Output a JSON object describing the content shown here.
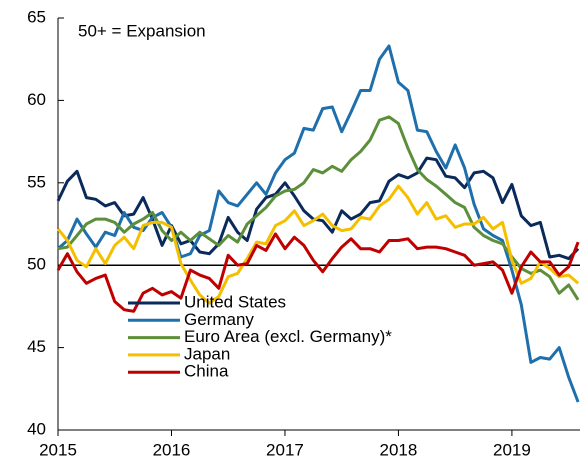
{
  "chart_data": {
    "type": "line",
    "annotation": "50+ = Expansion",
    "x": [
      2015,
      2015.083,
      2015.167,
      2015.25,
      2015.333,
      2015.417,
      2015.5,
      2015.583,
      2015.667,
      2015.75,
      2015.833,
      2015.917,
      2016,
      2016.083,
      2016.167,
      2016.25,
      2016.333,
      2016.417,
      2016.5,
      2016.583,
      2016.667,
      2016.75,
      2016.833,
      2016.917,
      2017,
      2017.083,
      2017.167,
      2017.25,
      2017.333,
      2017.417,
      2017.5,
      2017.583,
      2017.667,
      2017.75,
      2017.833,
      2017.917,
      2018,
      2018.083,
      2018.167,
      2018.25,
      2018.333,
      2018.417,
      2018.5,
      2018.583,
      2018.667,
      2018.75,
      2018.833,
      2018.917,
      2019,
      2019.083,
      2019.167,
      2019.25,
      2019.333,
      2019.417,
      2019.5,
      2019.583
    ],
    "series": [
      {
        "name": "United States",
        "color": "#0b2a5c",
        "values": [
          53.9,
          55.1,
          55.7,
          54.1,
          54.0,
          53.6,
          53.8,
          53.0,
          53.1,
          54.1,
          52.8,
          51.2,
          52.4,
          51.3,
          51.5,
          50.8,
          50.7,
          51.3,
          52.9,
          52.0,
          51.5,
          53.4,
          54.1,
          54.3,
          55.0,
          54.2,
          53.3,
          52.8,
          52.7,
          52.0,
          53.3,
          52.8,
          53.1,
          53.8,
          53.9,
          55.1,
          55.5,
          55.3,
          55.6,
          56.5,
          56.4,
          55.4,
          55.3,
          54.7,
          55.6,
          55.7,
          55.3,
          53.8,
          54.9,
          53.0,
          52.4,
          52.6,
          50.5,
          50.6,
          50.4,
          51.0
        ]
      },
      {
        "name": "Germany",
        "color": "#1f6fad",
        "values": [
          51.0,
          51.5,
          52.8,
          51.9,
          51.1,
          52.0,
          51.8,
          53.2,
          52.3,
          52.1,
          52.9,
          53.2,
          52.3,
          50.5,
          50.7,
          51.8,
          52.1,
          54.5,
          53.8,
          53.6,
          54.3,
          55.0,
          54.3,
          55.6,
          56.4,
          56.8,
          58.3,
          58.2,
          59.5,
          59.6,
          58.1,
          59.3,
          60.6,
          60.6,
          62.5,
          63.3,
          61.1,
          60.6,
          58.2,
          58.1,
          56.9,
          55.9,
          57.3,
          55.9,
          53.7,
          52.2,
          51.8,
          51.5,
          49.7,
          47.6,
          44.1,
          44.4,
          44.3,
          45.0,
          43.2,
          41.7
        ]
      },
      {
        "name": "Euro Area (excl. Germany)*",
        "color": "#5c8f3a",
        "values": [
          51.0,
          51.1,
          51.8,
          52.5,
          52.8,
          52.8,
          52.6,
          52.0,
          52.5,
          52.8,
          53.2,
          52.1,
          51.5,
          52.0,
          51.5,
          52.0,
          51.6,
          51.2,
          51.8,
          51.4,
          52.5,
          53.0,
          53.5,
          54.2,
          54.5,
          54.6,
          55.0,
          55.8,
          55.6,
          56.0,
          55.7,
          56.4,
          56.9,
          57.6,
          58.8,
          59.0,
          58.6,
          57.1,
          55.8,
          55.2,
          54.8,
          54.3,
          53.8,
          53.5,
          52.3,
          51.8,
          51.5,
          51.3,
          50.5,
          49.8,
          49.5,
          49.7,
          49.3,
          48.3,
          48.8,
          47.9
        ]
      },
      {
        "name": "Japan",
        "color": "#f5bf00",
        "values": [
          52.2,
          51.5,
          50.3,
          49.9,
          51.0,
          50.1,
          51.2,
          51.7,
          51.0,
          52.4,
          52.6,
          52.6,
          52.3,
          50.1,
          49.1,
          48.2,
          47.7,
          48.1,
          49.3,
          49.5,
          50.4,
          51.4,
          51.3,
          52.4,
          52.7,
          53.3,
          52.4,
          52.7,
          53.1,
          52.4,
          52.1,
          52.2,
          52.9,
          52.8,
          53.6,
          54.0,
          54.8,
          54.1,
          53.1,
          53.8,
          52.8,
          53.0,
          52.3,
          52.5,
          52.5,
          52.9,
          52.2,
          52.6,
          50.3,
          48.9,
          49.2,
          50.2,
          49.8,
          49.3,
          49.4,
          48.9
        ]
      },
      {
        "name": "China",
        "color": "#c00000",
        "values": [
          49.7,
          50.7,
          49.6,
          48.9,
          49.2,
          49.4,
          47.8,
          47.3,
          47.2,
          48.3,
          48.6,
          48.2,
          48.4,
          48.0,
          49.7,
          49.4,
          49.2,
          48.6,
          50.6,
          50.0,
          50.1,
          51.2,
          50.9,
          51.9,
          51.0,
          51.7,
          51.2,
          50.3,
          49.6,
          50.4,
          51.1,
          51.6,
          51.0,
          51.0,
          50.8,
          51.5,
          51.5,
          51.6,
          51.0,
          51.1,
          51.1,
          51.0,
          50.8,
          50.6,
          50.0,
          50.1,
          50.2,
          49.7,
          48.3,
          49.9,
          50.8,
          50.2,
          50.2,
          49.4,
          49.9,
          51.4
        ]
      }
    ],
    "xlim": [
      2015,
      2019.6
    ],
    "xticks": [
      2015,
      2016,
      2017,
      2018,
      2019
    ],
    "ylim": [
      40,
      65
    ],
    "yticks": [
      40,
      45,
      50,
      55,
      60,
      65
    ],
    "hline": 50
  }
}
